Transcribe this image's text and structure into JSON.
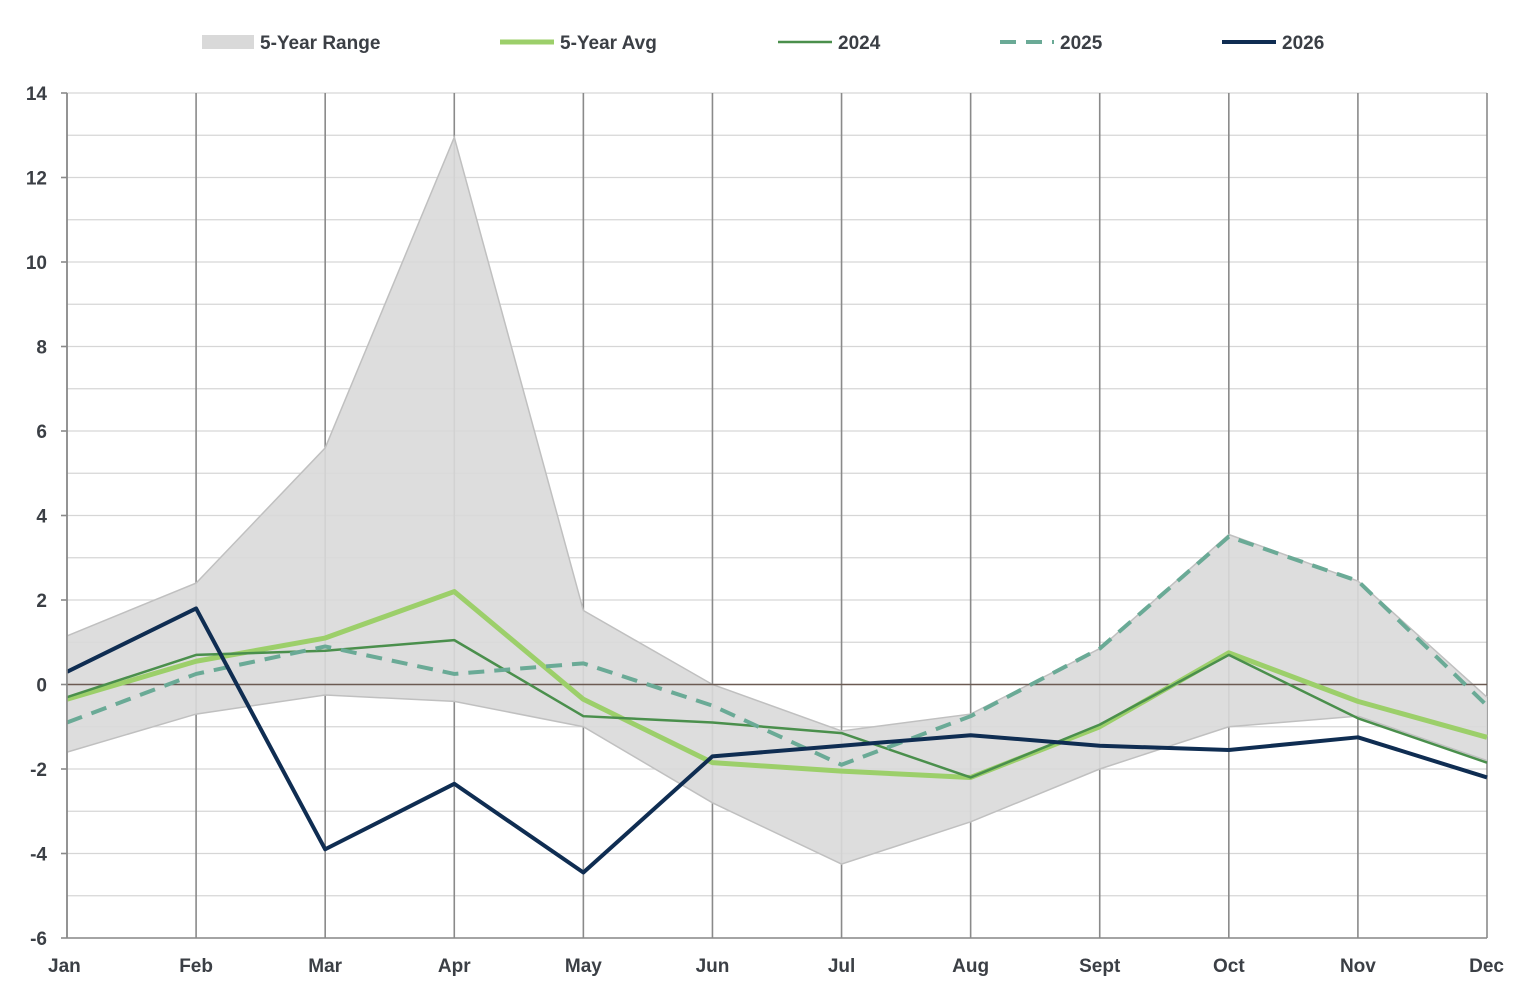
{
  "chart_data": {
    "type": "line",
    "title": "",
    "xlabel": "",
    "ylabel": "",
    "categories": [
      "Jan",
      "Feb",
      "Mar",
      "Apr",
      "May",
      "Jun",
      "Jul",
      "Aug",
      "Sept",
      "Oct",
      "Nov",
      "Dec"
    ],
    "ylim": [
      -6,
      14
    ],
    "yticks": [
      -6,
      -4,
      -2,
      0,
      2,
      4,
      6,
      8,
      10,
      12,
      14
    ],
    "ytick_labels": [
      "-6",
      "-4",
      "-2",
      "0",
      "2",
      "4",
      "6",
      "8",
      "10",
      "12",
      "14"
    ],
    "grid": true,
    "legend_position": "top",
    "range": {
      "name": "5-Year Range",
      "color": "#d9d9d9",
      "edge_color": "#c0c0c0",
      "high": [
        1.15,
        2.4,
        5.6,
        12.95,
        1.75,
        0.0,
        -1.1,
        -0.7,
        0.85,
        3.55,
        2.45,
        -0.3
      ],
      "low": [
        -1.6,
        -0.7,
        -0.25,
        -0.4,
        -1.0,
        -2.8,
        -4.25,
        -3.25,
        -2.0,
        -1.0,
        -0.75,
        -1.8
      ]
    },
    "series": [
      {
        "name": "5-Year Avg",
        "color": "#9ccf6a",
        "dash": "solid",
        "width": 5,
        "values": [
          -0.35,
          0.55,
          1.1,
          2.2,
          -0.35,
          -1.85,
          -2.05,
          -2.2,
          -1.0,
          0.75,
          -0.4,
          -1.25
        ]
      },
      {
        "name": "2024",
        "color": "#4a8f4c",
        "dash": "solid",
        "width": 2.5,
        "values": [
          -0.3,
          0.7,
          0.8,
          1.05,
          -0.75,
          -0.9,
          -1.15,
          -2.2,
          -0.95,
          0.7,
          -0.8,
          -1.85
        ]
      },
      {
        "name": "2025",
        "color": "#6aaa96",
        "dash": "dashed",
        "width": 4,
        "values": [
          -0.9,
          0.25,
          0.9,
          0.25,
          0.5,
          -0.5,
          -1.9,
          -0.75,
          0.85,
          3.5,
          2.45,
          -0.5
        ]
      },
      {
        "name": "2026",
        "color": "#0f2d52",
        "dash": "solid",
        "width": 4,
        "values": [
          0.3,
          1.8,
          -3.9,
          -2.35,
          -4.45,
          -1.7,
          -1.45,
          -1.2,
          -1.45,
          -1.55,
          -1.25,
          -2.2
        ]
      }
    ]
  }
}
